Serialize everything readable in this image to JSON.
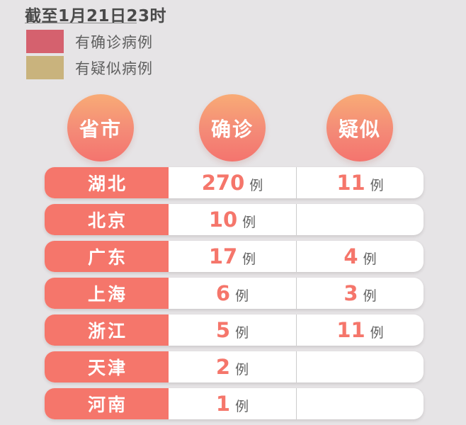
{
  "header": {
    "title": "截至1月21日23时"
  },
  "legend": {
    "items": [
      {
        "label": "有确诊病例",
        "color": "#d5616e"
      },
      {
        "label": "有疑似病例",
        "color": "#c9b37d"
      }
    ]
  },
  "table": {
    "columns": {
      "province": "省市",
      "confirmed": "确诊",
      "suspected": "疑似"
    },
    "unit": "例",
    "rows": [
      {
        "province": "湖北",
        "confirmed": "270",
        "suspected": "11"
      },
      {
        "province": "北京",
        "confirmed": "10",
        "suspected": ""
      },
      {
        "province": "广东",
        "confirmed": "17",
        "suspected": "4"
      },
      {
        "province": "上海",
        "confirmed": "6",
        "suspected": "3"
      },
      {
        "province": "浙江",
        "confirmed": "5",
        "suspected": "11"
      },
      {
        "province": "天津",
        "confirmed": "2",
        "suspected": ""
      },
      {
        "province": "河南",
        "confirmed": "1",
        "suspected": ""
      }
    ]
  },
  "colors": {
    "background": "#e6e4e6",
    "row_accent": "#f5766b",
    "number": "#f5766b",
    "circle_gradient_top": "#f8ab76",
    "circle_gradient_bottom": "#f4746e",
    "legend_confirmed": "#d5616e",
    "legend_suspected": "#c9b37d",
    "unit_text": "#616161",
    "divider": "#cccccc"
  },
  "chart_data": {
    "type": "table",
    "title": "截至1月21日23时",
    "columns": [
      "省市",
      "确诊",
      "疑似"
    ],
    "unit": "例",
    "rows": [
      [
        "湖北",
        270,
        11
      ],
      [
        "北京",
        10,
        null
      ],
      [
        "广东",
        17,
        4
      ],
      [
        "上海",
        6,
        3
      ],
      [
        "浙江",
        5,
        11
      ],
      [
        "天津",
        2,
        null
      ],
      [
        "河南",
        1,
        null
      ]
    ],
    "legend": [
      "有确诊病例",
      "有疑似病例"
    ],
    "legend_position": "top-left"
  }
}
